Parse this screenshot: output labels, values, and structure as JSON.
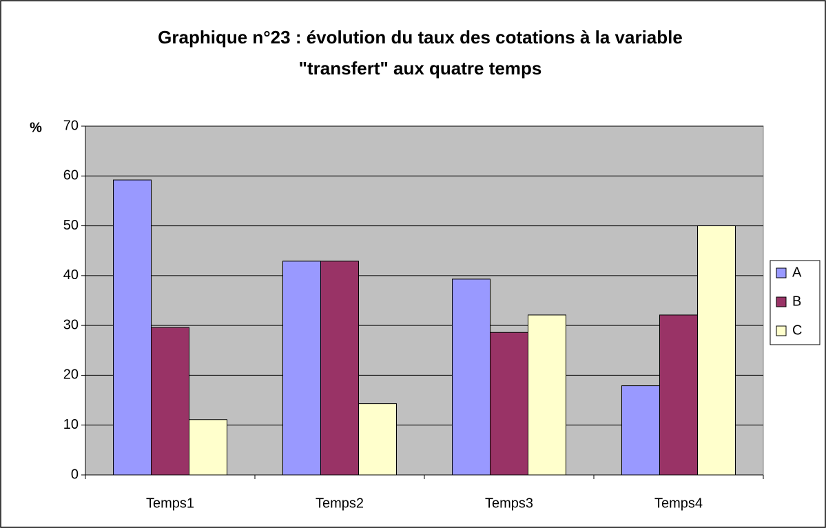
{
  "chart_data": {
    "type": "bar",
    "title": [
      "Graphique n°23 : évolution du taux des cotations à la variable",
      "\"transfert\" aux quatre temps"
    ],
    "ylabel": "%",
    "categories": [
      "Temps1",
      "Temps2",
      "Temps3",
      "Temps4"
    ],
    "series": [
      {
        "name": "A",
        "color": "#9999ff",
        "values": [
          59.2,
          42.9,
          39.3,
          17.9
        ]
      },
      {
        "name": "B",
        "color": "#993366",
        "values": [
          29.6,
          42.9,
          28.6,
          32.1
        ]
      },
      {
        "name": "C",
        "color": "#ffffcc",
        "values": [
          11.1,
          14.3,
          32.1,
          50
        ]
      }
    ],
    "ylim": [
      0,
      70
    ],
    "yticks": [
      0,
      10,
      20,
      30,
      40,
      50,
      60,
      70
    ],
    "grid": true,
    "legend": "right",
    "plot_background": "#c0c0c0"
  }
}
